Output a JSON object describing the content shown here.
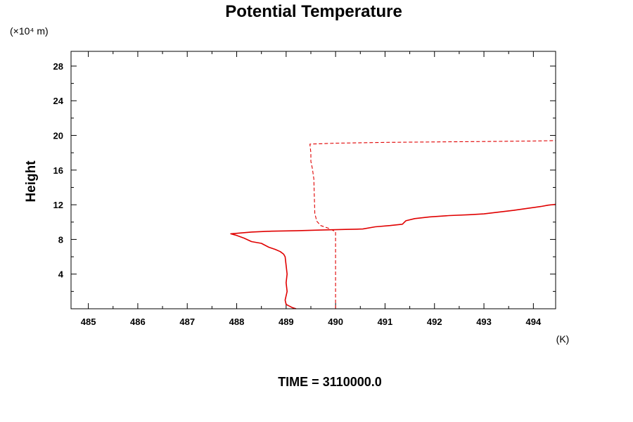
{
  "chart_data": {
    "type": "line",
    "title": "Potential Temperature",
    "ylabel": "Height",
    "y_unit": "(×10⁴ m)",
    "x_unit": "(K)",
    "time_label": "TIME = 3110000.0",
    "xlim": [
      484.65,
      494.45
    ],
    "ylim": [
      0,
      29.7
    ],
    "x_ticks": [
      485,
      486,
      487,
      488,
      489,
      490,
      491,
      492,
      493,
      494
    ],
    "y_ticks": [
      4,
      8,
      12,
      16,
      20,
      24,
      28
    ],
    "line_color": "#e00000",
    "series": [
      {
        "style": "solid",
        "points": [
          [
            489.2,
            0.0
          ],
          [
            489.12,
            0.15
          ],
          [
            489.0,
            0.5
          ],
          [
            488.98,
            1.0
          ],
          [
            489.02,
            2.0
          ],
          [
            489.0,
            3.0
          ],
          [
            489.02,
            4.0
          ],
          [
            489.0,
            5.0
          ],
          [
            488.98,
            6.0
          ],
          [
            488.95,
            6.3
          ],
          [
            488.88,
            6.6
          ],
          [
            488.78,
            6.85
          ],
          [
            488.65,
            7.1
          ],
          [
            488.5,
            7.55
          ],
          [
            488.3,
            7.75
          ],
          [
            488.15,
            8.15
          ],
          [
            487.98,
            8.5
          ],
          [
            487.88,
            8.65
          ],
          [
            488.3,
            8.85
          ],
          [
            488.7,
            8.95
          ],
          [
            489.2,
            9.0
          ],
          [
            489.7,
            9.08
          ],
          [
            490.2,
            9.15
          ],
          [
            490.55,
            9.2
          ],
          [
            490.8,
            9.45
          ],
          [
            491.1,
            9.6
          ],
          [
            491.35,
            9.75
          ],
          [
            491.42,
            10.15
          ],
          [
            491.6,
            10.4
          ],
          [
            491.9,
            10.6
          ],
          [
            492.3,
            10.75
          ],
          [
            492.7,
            10.85
          ],
          [
            493.0,
            10.95
          ],
          [
            493.3,
            11.15
          ],
          [
            493.6,
            11.35
          ],
          [
            493.9,
            11.6
          ],
          [
            494.15,
            11.8
          ],
          [
            494.3,
            11.95
          ],
          [
            494.45,
            12.05
          ]
        ]
      },
      {
        "style": "dashed",
        "points": [
          [
            490.0,
            0.0
          ],
          [
            490.0,
            8.5
          ],
          [
            490.0,
            8.9
          ],
          [
            489.85,
            9.3
          ],
          [
            489.7,
            9.6
          ],
          [
            489.62,
            10.1
          ],
          [
            489.58,
            11.0
          ],
          [
            489.57,
            13.0
          ],
          [
            489.56,
            15.0
          ],
          [
            489.53,
            16.2
          ],
          [
            489.5,
            17.0
          ],
          [
            489.5,
            18.0
          ],
          [
            489.48,
            19.0
          ],
          [
            490.0,
            19.1
          ],
          [
            491.0,
            19.2
          ],
          [
            492.0,
            19.25
          ],
          [
            493.0,
            19.3
          ],
          [
            494.0,
            19.35
          ],
          [
            494.45,
            19.4
          ]
        ]
      }
    ]
  }
}
